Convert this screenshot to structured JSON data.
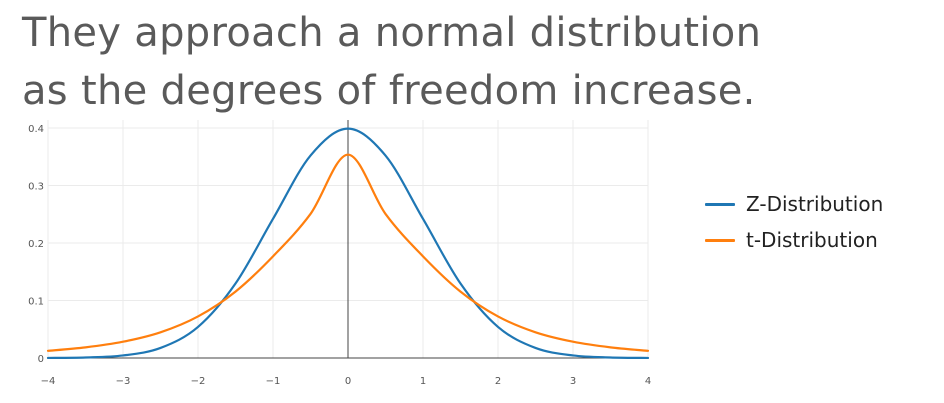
{
  "slide": {
    "title_line1": "They approach a normal distribution",
    "title_line2": "as the degrees of freedom increase."
  },
  "chart_data": {
    "type": "line",
    "title": "",
    "xlabel": "",
    "ylabel": "",
    "xlim": [
      -4,
      4
    ],
    "ylim": [
      0,
      0.4
    ],
    "grid": true,
    "legend_position": "right",
    "x_ticks": [
      -4,
      -3,
      -2,
      -1,
      0,
      1,
      2,
      3,
      4
    ],
    "x_tick_labels": [
      "−4",
      "−3",
      "−2",
      "−1",
      "0",
      "1",
      "2",
      "3",
      "4"
    ],
    "y_ticks": [
      0,
      0.1,
      0.2,
      0.3,
      0.4
    ],
    "y_tick_labels": [
      "0",
      "0.1",
      "0.2",
      "0.3",
      "0.4"
    ],
    "x": [
      -4,
      -3.5,
      -3,
      -2.5,
      -2,
      -1.5,
      -1,
      -0.5,
      0,
      0.5,
      1,
      1.5,
      2,
      2.5,
      3,
      3.5,
      4
    ],
    "series": [
      {
        "name": "Z-Distribution",
        "color": "#1f77b4",
        "values": [
          0.0001,
          0.0009,
          0.0044,
          0.0175,
          0.054,
          0.1295,
          0.242,
          0.3521,
          0.3989,
          0.3521,
          0.242,
          0.1295,
          0.054,
          0.0175,
          0.0044,
          0.0009,
          0.0001
        ]
      },
      {
        "name": "t-Distribution",
        "color": "#ff7f0e",
        "values": [
          0.0125,
          0.0185,
          0.0283,
          0.0447,
          0.0723,
          0.1155,
          0.1768,
          0.2506,
          0.3536,
          0.2506,
          0.1768,
          0.1155,
          0.0723,
          0.0447,
          0.0283,
          0.0185,
          0.0125
        ]
      }
    ]
  }
}
